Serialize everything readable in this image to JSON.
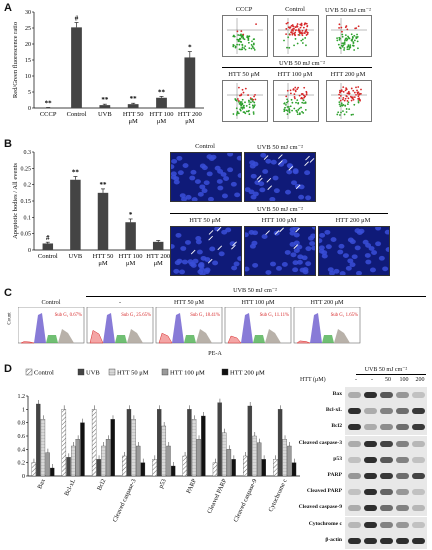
{
  "panels": {
    "a": "A",
    "b": "B",
    "c": "C",
    "d": "D"
  },
  "chart_data": [
    {
      "type": "bar",
      "ylabel": "Red/Green fluorescence ratio",
      "ylim": [
        0,
        30
      ],
      "yticks": [
        0,
        5,
        10,
        15,
        20,
        25,
        30
      ],
      "categories": [
        "CCCP",
        "Control",
        "UVB",
        "HTT 50 μM",
        "HTT 100 μM",
        "HTT 200 μM"
      ],
      "values": [
        0.1,
        25.2,
        0.9,
        1.2,
        3.2,
        15.8
      ],
      "errors": [
        0.05,
        1.5,
        0.3,
        0.3,
        0.4,
        1.8
      ],
      "marks": [
        "**",
        "#",
        "**",
        "**",
        "**",
        "*"
      ]
    },
    {
      "type": "bar",
      "ylabel": "Apoptotic bodies / All events",
      "ylim": [
        0,
        0.3
      ],
      "yticks": [
        0,
        0.05,
        0.1,
        0.15,
        0.2,
        0.25,
        0.3
      ],
      "categories": [
        "Control",
        "UVB",
        "HTT 50 μM",
        "HTT 100 μM",
        "HTT 200 μM"
      ],
      "values": [
        0.02,
        0.215,
        0.175,
        0.085,
        0.025
      ],
      "errors": [
        0.004,
        0.01,
        0.012,
        0.01,
        0.004
      ],
      "marks": [
        "#",
        "**",
        "**",
        "*",
        ""
      ]
    },
    {
      "type": "bar",
      "ylim": [
        0,
        1.2
      ],
      "yticks": [
        0,
        0.2,
        0.4,
        0.6,
        0.8,
        1,
        1.2
      ],
      "categories": [
        "Bax",
        "Bcl-xL",
        "Bcl2",
        "Cleaved caspase-3",
        "p53",
        "PARP",
        "Cleaved PARP",
        "Cleaved caspase-9",
        "Cytochrome c"
      ],
      "series": [
        {
          "name": "Control",
          "values": [
            0.2,
            1.0,
            1.0,
            0.3,
            0.25,
            0.3,
            0.2,
            0.3,
            0.25
          ]
        },
        {
          "name": "UVB",
          "values": [
            1.08,
            0.28,
            0.25,
            1.0,
            1.0,
            1.0,
            1.1,
            1.05,
            1.0
          ]
        },
        {
          "name": "HTT 50 μM",
          "values": [
            0.85,
            0.45,
            0.45,
            0.85,
            0.75,
            0.85,
            0.65,
            0.6,
            0.55
          ]
        },
        {
          "name": "HTT 100 μM",
          "values": [
            0.35,
            0.55,
            0.55,
            0.45,
            0.45,
            0.55,
            0.4,
            0.5,
            0.45
          ]
        },
        {
          "name": "HTT 200 μM",
          "values": [
            0.12,
            0.8,
            0.85,
            0.2,
            0.15,
            0.9,
            0.25,
            0.25,
            0.2
          ]
        }
      ]
    }
  ],
  "flow_a": {
    "top_labels": [
      "CCCP",
      "Control",
      "UVB 50 mJ cm⁻²"
    ],
    "group_label": "UVB 50 mJ cm⁻²",
    "bottom_labels": [
      "HTT 50 μM",
      "HTT 100 μM",
      "HTT 200 μM"
    ]
  },
  "micro_b": {
    "top_labels": [
      "Control",
      "UVB 50 mJ cm⁻²"
    ],
    "group_label": "UVB 50 mJ cm⁻²",
    "bottom_labels": [
      "HTT 50 μM",
      "HTT 100 μM",
      "HTT 200 μM"
    ]
  },
  "hist_c": {
    "group_label": "UVB 50 mJ cm⁻²",
    "labels": [
      "Control",
      "-",
      "HTT 50 μM",
      "HTT 100 μM",
      "HTT 200 μM"
    ],
    "subg": [
      "Sub G₁ 0.67%",
      "Sub G₁ 25.65%",
      "Sub G₁ 18.41%",
      "Sub G₁ 11.11%",
      "Sub G₁ 1.65%"
    ],
    "ylabel": "Count",
    "xlabel": "PE-A"
  },
  "legend_d": [
    "Control",
    "UVB",
    "HTT 50 μM",
    "HTT 100 μM",
    "HTT 200 μM"
  ],
  "blot": {
    "group_label": "UVB 50 mJ cm⁻²",
    "htt_label": "HTT (μM)",
    "lanes": [
      "-",
      "-",
      "50",
      "100",
      "200"
    ],
    "proteins": [
      "Bax",
      "Bcl-xL",
      "Bcl2",
      "Cleaved caspase-3",
      "p53",
      "PARP",
      "Cleaved PARP",
      "Cleaved caspase-9",
      "Cytochrome c",
      "β-actin"
    ]
  }
}
